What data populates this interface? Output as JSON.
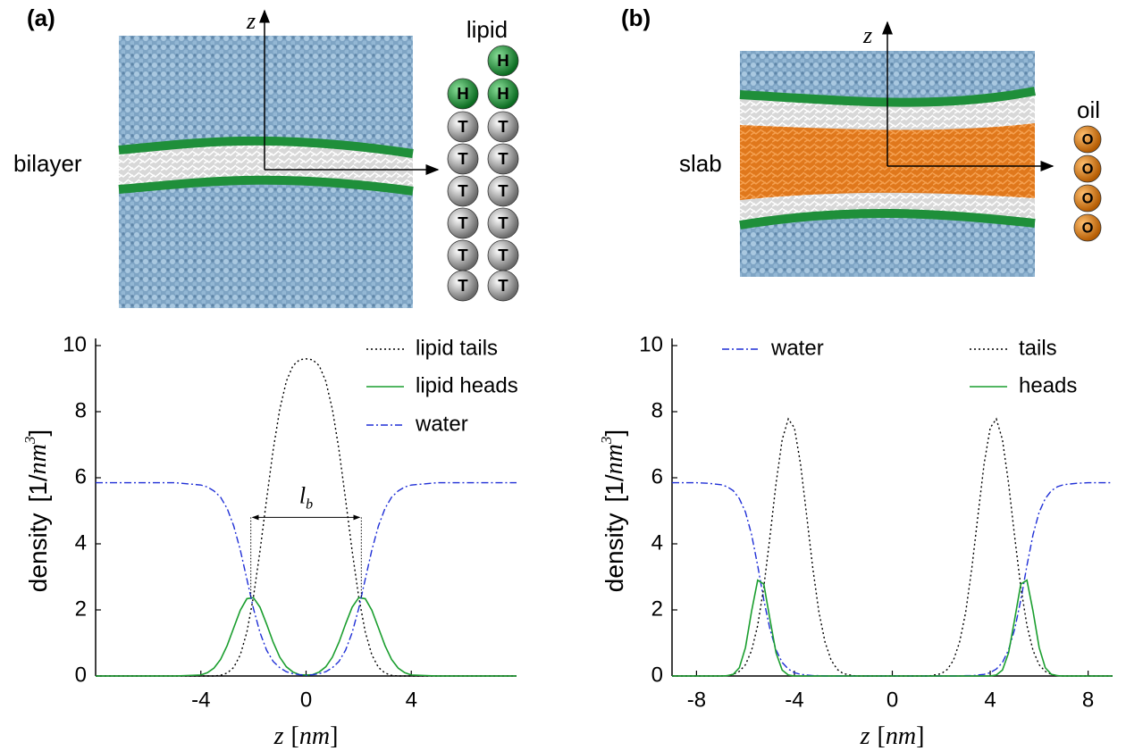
{
  "chart_data": [
    {
      "type": "line",
      "x": [
        -8,
        -7,
        -6,
        -5,
        -4,
        -3.75,
        -3.5,
        -3.25,
        -3,
        -2.75,
        -2.5,
        -2.25,
        -2,
        -1.75,
        -1.5,
        -1.25,
        -1,
        -0.75,
        -0.5,
        -0.25,
        0,
        0.25,
        0.5,
        0.75,
        1,
        1.25,
        1.5,
        1.75,
        2,
        2.25,
        2.5,
        2.75,
        3,
        3.25,
        3.5,
        3.75,
        4,
        5,
        6,
        7,
        8
      ],
      "series": [
        {
          "name": "lipid tails",
          "color": "#000000",
          "linestyle": "dotted",
          "values": [
            0,
            0,
            0,
            0,
            0,
            0,
            0,
            0.02,
            0.09,
            0.26,
            0.64,
            1.33,
            2.4,
            3.79,
            5.35,
            6.85,
            8.07,
            8.92,
            9.39,
            9.57,
            9.6,
            9.57,
            9.39,
            8.92,
            8.07,
            6.85,
            5.35,
            3.79,
            2.4,
            1.33,
            0.64,
            0.26,
            0.09,
            0.02,
            0,
            0,
            0,
            0,
            0,
            0,
            0
          ]
        },
        {
          "name": "lipid heads",
          "color": "#1a9e2e",
          "linestyle": "solid",
          "values": [
            0,
            0,
            0,
            0,
            0.03,
            0.1,
            0.24,
            0.5,
            0.92,
            1.46,
            1.99,
            2.34,
            2.37,
            2.08,
            1.57,
            1.02,
            0.57,
            0.28,
            0.12,
            0.04,
            0.03,
            0.04,
            0.12,
            0.28,
            0.57,
            1.02,
            1.57,
            2.08,
            2.37,
            2.34,
            1.99,
            1.46,
            0.92,
            0.5,
            0.24,
            0.1,
            0.03,
            0,
            0,
            0,
            0
          ]
        },
        {
          "name": "water",
          "color": "#1f2fd6",
          "linestyle": "dashdot",
          "values": [
            5.85,
            5.85,
            5.85,
            5.85,
            5.78,
            5.72,
            5.6,
            5.41,
            5.07,
            4.54,
            3.81,
            2.93,
            2.04,
            1.31,
            0.78,
            0.44,
            0.25,
            0.13,
            0.07,
            0.04,
            0.02,
            0.04,
            0.07,
            0.13,
            0.25,
            0.44,
            0.78,
            1.31,
            2.04,
            2.93,
            3.81,
            4.54,
            5.07,
            5.41,
            5.6,
            5.72,
            5.78,
            5.85,
            5.85,
            5.85,
            5.85
          ]
        }
      ],
      "xlim": [
        -8,
        8
      ],
      "xticks": [
        -4,
        0,
        4
      ],
      "ylim": [
        0,
        10
      ],
      "yticks": [
        0,
        2,
        4,
        6,
        8,
        10
      ],
      "xlabel": [
        "z",
        "[",
        "nm",
        "]"
      ],
      "ylabel": [
        "density",
        "[1/",
        "nm",
        "3",
        "]"
      ],
      "annotation": {
        "text": "l",
        "subscript": "b",
        "x": [
          -2.1,
          2.1
        ],
        "y": 4.8,
        "y_from": 2.4
      }
    },
    {
      "type": "line",
      "x": [
        -9,
        -8.5,
        -8,
        -7.5,
        -7,
        -6.75,
        -6.5,
        -6.25,
        -6,
        -5.75,
        -5.5,
        -5.25,
        -5,
        -4.75,
        -4.5,
        -4.25,
        -4,
        -3.75,
        -3.5,
        -3.25,
        -3,
        -2.75,
        -2.5,
        -2.25,
        -2,
        -1.5,
        -1,
        -0.5,
        0,
        0.5,
        1,
        1.5,
        2,
        2.25,
        2.5,
        2.75,
        3,
        3.25,
        3.5,
        3.75,
        4,
        4.25,
        4.5,
        4.75,
        5,
        5.25,
        5.5,
        5.75,
        6,
        6.25,
        6.5,
        6.75,
        7,
        7.5,
        8,
        8.5,
        9
      ],
      "series": [
        {
          "name": "water",
          "color": "#1f2fd6",
          "linestyle": "dashdot",
          "values": [
            5.85,
            5.85,
            5.85,
            5.83,
            5.79,
            5.73,
            5.61,
            5.37,
            4.96,
            4.28,
            3.34,
            2.3,
            1.42,
            0.79,
            0.41,
            0.21,
            0.1,
            0.05,
            0.03,
            0.01,
            0.01,
            0,
            0,
            0,
            0,
            0,
            0,
            0,
            0,
            0,
            0,
            0,
            0,
            0,
            0,
            0,
            0.01,
            0.01,
            0.03,
            0.05,
            0.1,
            0.21,
            0.41,
            0.79,
            1.42,
            2.3,
            3.34,
            4.28,
            4.96,
            5.37,
            5.61,
            5.73,
            5.79,
            5.83,
            5.85,
            5.85,
            5.85
          ]
        },
        {
          "name": "tails",
          "color": "#000000",
          "linestyle": "dotted",
          "values": [
            0,
            0,
            0,
            0,
            0,
            0.01,
            0.05,
            0.14,
            0.34,
            0.77,
            1.53,
            2.69,
            4.21,
            5.83,
            7.15,
            7.78,
            7.51,
            6.42,
            4.86,
            3.27,
            1.94,
            1.03,
            0.48,
            0.2,
            0.07,
            0,
            0,
            0,
            0,
            0,
            0,
            0,
            0.07,
            0.2,
            0.48,
            1.03,
            1.94,
            3.27,
            4.86,
            6.42,
            7.51,
            7.78,
            7.15,
            5.83,
            4.21,
            2.69,
            1.53,
            0.77,
            0.34,
            0.14,
            0.05,
            0.01,
            0,
            0,
            0,
            0,
            0
          ]
        },
        {
          "name": "heads",
          "color": "#1a9e2e",
          "linestyle": "solid",
          "values": [
            0,
            0,
            0,
            0,
            0,
            0.01,
            0.05,
            0.25,
            0.86,
            1.96,
            2.9,
            2.78,
            1.72,
            0.7,
            0.18,
            0.03,
            0,
            0,
            0,
            0,
            0,
            0,
            0,
            0,
            0,
            0,
            0,
            0,
            0,
            0,
            0,
            0,
            0,
            0,
            0,
            0,
            0,
            0,
            0,
            0,
            0,
            0.03,
            0.18,
            0.7,
            1.72,
            2.78,
            2.9,
            1.96,
            0.86,
            0.25,
            0.05,
            0.01,
            0,
            0,
            0,
            0,
            0
          ]
        }
      ],
      "xlim": [
        -9,
        9
      ],
      "xticks": [
        -8,
        -4,
        0,
        4,
        8
      ],
      "ylim": [
        0,
        10
      ],
      "yticks": [
        0,
        2,
        4,
        6,
        8,
        10
      ],
      "xlabel": [
        "z",
        "[",
        "nm",
        "]"
      ],
      "ylabel": [
        "density",
        "[1/",
        "nm",
        "3",
        "]"
      ]
    }
  ],
  "panels": [
    {
      "label": "(a)",
      "axis_label": "z",
      "system": "bilayer",
      "molecule": "lipid",
      "left_chain": [
        "H",
        "T",
        "T",
        "T",
        "T",
        "T",
        "T"
      ],
      "right_chain": [
        "H",
        "H",
        "T",
        "T",
        "T",
        "T",
        "T",
        "T"
      ]
    },
    {
      "label": "(b)",
      "axis_label": "z",
      "system": "slab",
      "molecule": "oil",
      "chain": [
        "O",
        "O",
        "O",
        "O"
      ]
    }
  ]
}
